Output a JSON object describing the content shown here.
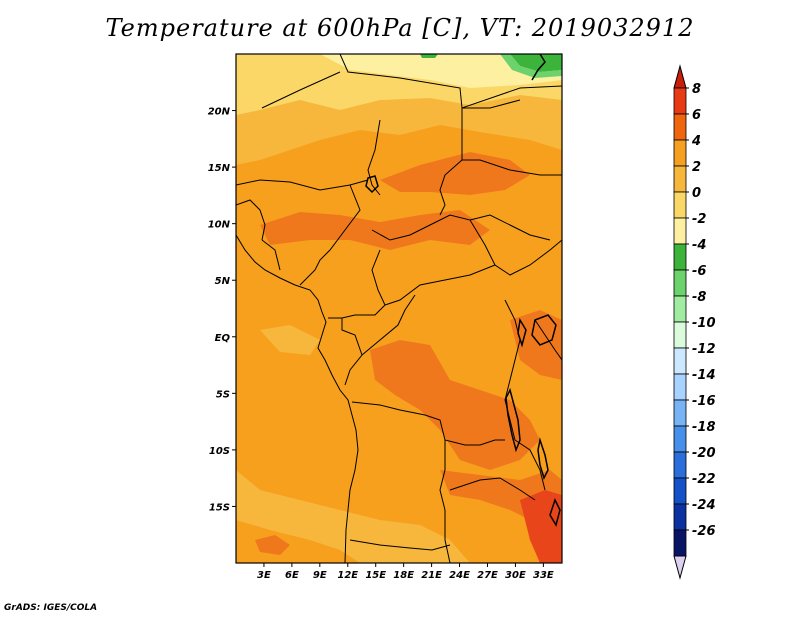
{
  "title": "Temperature at 600hPa [C], VT: 2019032912",
  "credit": "GrADS: IGES/COLA",
  "map": {
    "lon_range": [
      0,
      35
    ],
    "lat_range": [
      -20,
      25
    ],
    "x_ticks": [
      {
        "lon": 3,
        "label": "3E"
      },
      {
        "lon": 6,
        "label": "6E"
      },
      {
        "lon": 9,
        "label": "9E"
      },
      {
        "lon": 12,
        "label": "12E"
      },
      {
        "lon": 15,
        "label": "15E"
      },
      {
        "lon": 18,
        "label": "18E"
      },
      {
        "lon": 21,
        "label": "21E"
      },
      {
        "lon": 24,
        "label": "24E"
      },
      {
        "lon": 27,
        "label": "27E"
      },
      {
        "lon": 30,
        "label": "30E"
      },
      {
        "lon": 33,
        "label": "33E"
      }
    ],
    "y_ticks": [
      {
        "lat": 20,
        "label": "20N"
      },
      {
        "lat": 15,
        "label": "15N"
      },
      {
        "lat": 10,
        "label": "10N"
      },
      {
        "lat": 5,
        "label": "5N"
      },
      {
        "lat": 0,
        "label": "EQ"
      },
      {
        "lat": -5,
        "label": "5S"
      },
      {
        "lat": -10,
        "label": "10S"
      },
      {
        "lat": -15,
        "label": "15S"
      }
    ]
  },
  "colorbar": {
    "levels": [
      "8",
      "6",
      "4",
      "2",
      "0",
      "-2",
      "-4",
      "-6",
      "-8",
      "-10",
      "-12",
      "-14",
      "-16",
      "-18",
      "-20",
      "-22",
      "-24",
      "-26"
    ],
    "colors": [
      "#e83a14",
      "#f0660f",
      "#f5a020",
      "#f7b73c",
      "#fbd768",
      "#fdf0a0",
      "#3cb43c",
      "#6cd26c",
      "#a0eca0",
      "#dcfadc",
      "#cce8ff",
      "#a8d2ff",
      "#78b4f5",
      "#4690eb",
      "#2a6edc",
      "#1450c8",
      "#0a32a0",
      "#0a1464"
    ],
    "top_arrow_color": "#c81e0a",
    "bottom_arrow_color": "#dcd2f0"
  },
  "field_colors": {
    "base": "#f7a01e",
    "warm": "#f0781c",
    "cool": "#f7b73c",
    "cooler": "#fbd768",
    "coolest": "#fdf0a0",
    "green": "#3cb43c",
    "light_green": "#6cd26c",
    "hot": "#e8461a"
  }
}
